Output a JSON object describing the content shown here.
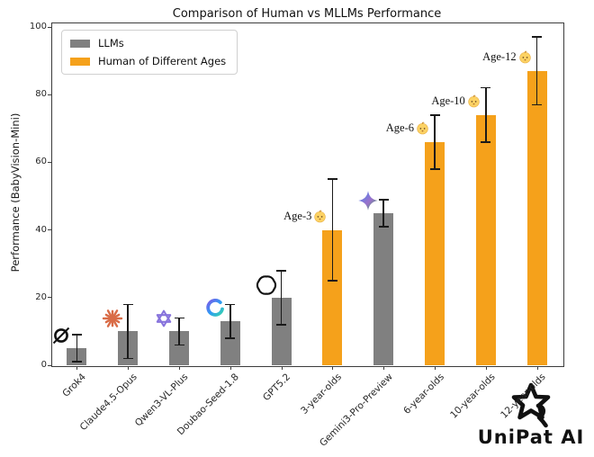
{
  "watermark": {
    "brand": "UniPat AI",
    "icon": "unipat-star-logo"
  },
  "chart_data": {
    "type": "bar",
    "title": "Comparison of Human vs MLLMs Performance",
    "xlabel": "",
    "ylabel": "Performance (BabyVision-Mini)",
    "ylim": [
      0,
      100
    ],
    "yticks": [
      0,
      20,
      40,
      60,
      80,
      100
    ],
    "grid": false,
    "legend_position": "upper-left",
    "error_bars": true,
    "colors": {
      "llm": "#808080",
      "human": "#F5A11B",
      "error_bar": "#1a1a1a"
    },
    "legend": [
      {
        "label": "LLMs",
        "group": "llm",
        "color": "#808080"
      },
      {
        "label": "Human of Different Ages",
        "group": "human",
        "color": "#F5A11B"
      }
    ],
    "bars": [
      {
        "label": "Grok4",
        "group": "llm",
        "value": 5,
        "error": 4,
        "icon": "grok-icon"
      },
      {
        "label": "Claude4.5-Opus",
        "group": "llm",
        "value": 10,
        "error": 8,
        "icon": "claude-icon"
      },
      {
        "label": "Qwen3-VL-Plus",
        "group": "llm",
        "value": 10,
        "error": 4,
        "icon": "qwen-icon"
      },
      {
        "label": "Doubao-Seed-1.8",
        "group": "llm",
        "value": 13,
        "error": 5,
        "icon": "doubao-icon"
      },
      {
        "label": "GPT5.2",
        "group": "llm",
        "value": 20,
        "error": 8,
        "icon": "openai-icon"
      },
      {
        "label": "3-year-olds",
        "group": "human",
        "value": 40,
        "error": 15,
        "annotation": "Age-3",
        "annotation_icon": "baby-face-emoji"
      },
      {
        "label": "Gemini3-Pro-Preview",
        "group": "llm",
        "value": 45,
        "error": 4,
        "icon": "gemini-icon"
      },
      {
        "label": "6-year-olds",
        "group": "human",
        "value": 66,
        "error": 8,
        "annotation": "Age-6",
        "annotation_icon": "baby-face-emoji"
      },
      {
        "label": "10-year-olds",
        "group": "human",
        "value": 74,
        "error": 8,
        "annotation": "Age-10",
        "annotation_icon": "baby-face-emoji"
      },
      {
        "label": "12-year-olds",
        "group": "human",
        "value": 87,
        "error": 10,
        "annotation": "Age-12",
        "annotation_icon": "baby-face-emoji"
      }
    ]
  }
}
